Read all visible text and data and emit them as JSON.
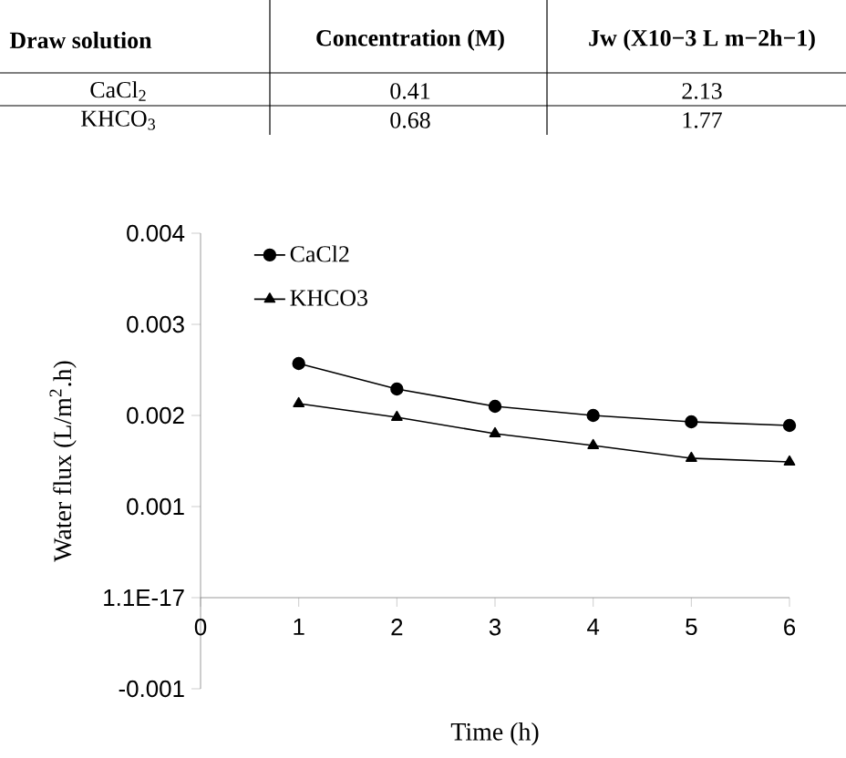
{
  "chart_data": [
    {
      "type": "other",
      "annotations": [
        "Draw solution",
        "Concentration (M)",
        "Jw (X10−3 L m−2h−1)",
        "CaCl$_{2}$",
        "0.41",
        "2.13",
        "KHCO$_{3}$",
        "0.68",
        "1.77"
      ]
    },
    {
      "type": "line",
      "xlabel": "Time (h)",
      "ylabel": "Water flux (L/m$^{2}$.h)",
      "x": [
        1,
        2,
        3,
        4,
        5,
        6
      ],
      "series": [
        {
          "name": "CaCl2",
          "color": "#000000",
          "marker": "circle",
          "values": [
            0.00257,
            0.00229,
            0.0021,
            0.002,
            0.00193,
            0.00189
          ]
        },
        {
          "name": "KHCO3",
          "color": "#000000",
          "marker": "triangle",
          "values": [
            0.00213,
            0.00198,
            0.0018,
            0.00167,
            0.00153,
            0.00149
          ]
        }
      ],
      "xlim": [
        0,
        6
      ],
      "ylim": [
        -0.001,
        0.004
      ],
      "xticks": [
        0,
        1,
        2,
        3,
        4,
        5,
        6
      ],
      "yticks": [
        -0.001,
        {
          "value": 0,
          "label": "1.1E-17"
        },
        0.001,
        0.002,
        0.003,
        0.004
      ],
      "legend": "top left",
      "line_style": "solid"
    }
  ]
}
